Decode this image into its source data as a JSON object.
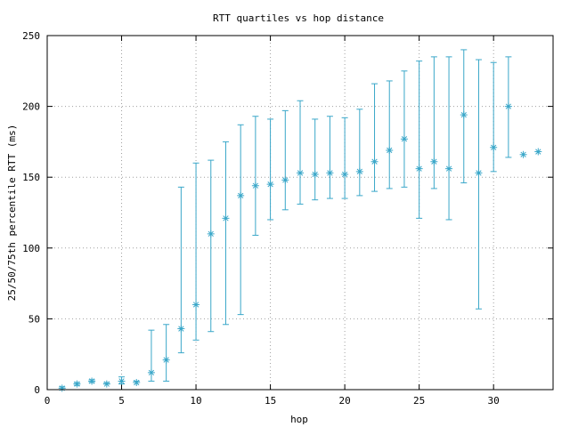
{
  "chart_data": {
    "type": "scatter",
    "title": "RTT quartiles vs hop distance",
    "xlabel": "hop",
    "ylabel": "25/50/75th percentile RTT (ms)",
    "xlim": [
      0,
      34
    ],
    "ylim": [
      0,
      250
    ],
    "xticks": [
      0,
      5,
      10,
      15,
      20,
      25,
      30
    ],
    "yticks": [
      0,
      50,
      100,
      150,
      200,
      250
    ],
    "grid": true,
    "color": "#3aa7c9",
    "points": [
      {
        "hop": 1,
        "p25": 0,
        "median": 1,
        "p75": 2
      },
      {
        "hop": 2,
        "p25": 3,
        "median": 4,
        "p75": 5
      },
      {
        "hop": 3,
        "p25": 5,
        "median": 6,
        "p75": 7
      },
      {
        "hop": 4,
        "p25": 4,
        "median": 4,
        "p75": 5
      },
      {
        "hop": 5,
        "p25": 4,
        "median": 6,
        "p75": 9
      },
      {
        "hop": 6,
        "p25": 5,
        "median": 5,
        "p75": 6
      },
      {
        "hop": 7,
        "p25": 6,
        "median": 12,
        "p75": 42
      },
      {
        "hop": 8,
        "p25": 6,
        "median": 21,
        "p75": 46
      },
      {
        "hop": 9,
        "p25": 26,
        "median": 43,
        "p75": 143
      },
      {
        "hop": 10,
        "p25": 35,
        "median": 60,
        "p75": 160
      },
      {
        "hop": 11,
        "p25": 41,
        "median": 110,
        "p75": 162
      },
      {
        "hop": 12,
        "p25": 46,
        "median": 121,
        "p75": 175
      },
      {
        "hop": 13,
        "p25": 53,
        "median": 137,
        "p75": 187
      },
      {
        "hop": 14,
        "p25": 109,
        "median": 144,
        "p75": 193
      },
      {
        "hop": 15,
        "p25": 120,
        "median": 145,
        "p75": 191
      },
      {
        "hop": 16,
        "p25": 127,
        "median": 148,
        "p75": 197
      },
      {
        "hop": 17,
        "p25": 131,
        "median": 153,
        "p75": 204
      },
      {
        "hop": 18,
        "p25": 134,
        "median": 152,
        "p75": 191
      },
      {
        "hop": 19,
        "p25": 135,
        "median": 153,
        "p75": 193
      },
      {
        "hop": 20,
        "p25": 135,
        "median": 152,
        "p75": 192
      },
      {
        "hop": 21,
        "p25": 137,
        "median": 154,
        "p75": 198
      },
      {
        "hop": 22,
        "p25": 140,
        "median": 161,
        "p75": 216
      },
      {
        "hop": 23,
        "p25": 142,
        "median": 169,
        "p75": 218
      },
      {
        "hop": 24,
        "p25": 143,
        "median": 177,
        "p75": 225
      },
      {
        "hop": 25,
        "p25": 121,
        "median": 156,
        "p75": 232
      },
      {
        "hop": 26,
        "p25": 142,
        "median": 161,
        "p75": 235
      },
      {
        "hop": 27,
        "p25": 120,
        "median": 156,
        "p75": 235
      },
      {
        "hop": 28,
        "p25": 146,
        "median": 194,
        "p75": 240
      },
      {
        "hop": 29,
        "p25": 57,
        "median": 153,
        "p75": 233
      },
      {
        "hop": 30,
        "p25": 154,
        "median": 171,
        "p75": 231
      },
      {
        "hop": 31,
        "p25": 164,
        "median": 200,
        "p75": 235
      },
      {
        "hop": 32,
        "p25": 166,
        "median": 166,
        "p75": 166
      },
      {
        "hop": 33,
        "p25": 168,
        "median": 168,
        "p75": 168
      }
    ]
  }
}
